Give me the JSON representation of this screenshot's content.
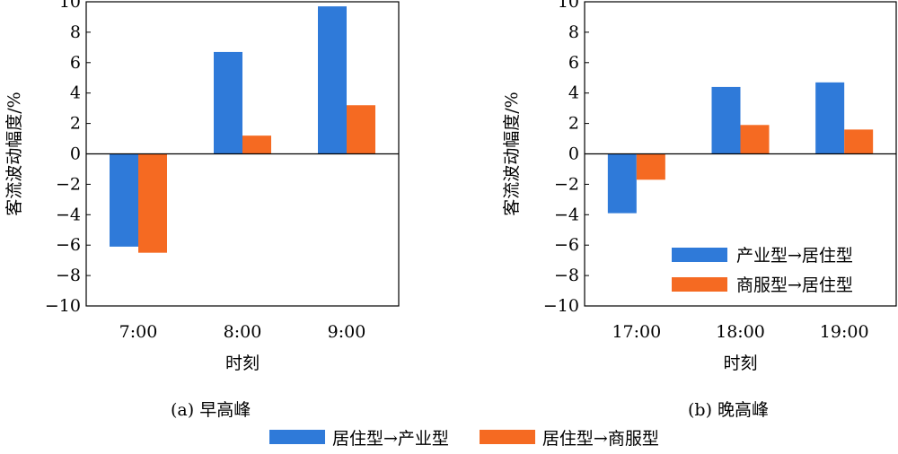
{
  "chart_data": [
    {
      "type": "bar",
      "caption": "(a) 早高峰",
      "categories": [
        "7:00",
        "8:00",
        "9:00"
      ],
      "series": [
        {
          "name": "居住型→产业型",
          "color": "#2f7ad9",
          "values": [
            -6.1,
            6.7,
            9.7
          ]
        },
        {
          "name": "居住型→商服型",
          "color": "#f56a22",
          "values": [
            -6.5,
            1.2,
            3.2
          ]
        }
      ],
      "xlabel": "时刻",
      "ylabel": "客流波动幅度/%",
      "ylim": [
        -10,
        10
      ],
      "yticks": [
        "10",
        "8",
        "6",
        "4",
        "2",
        "0",
        "−2",
        "−4",
        "−6",
        "−8",
        "−10"
      ],
      "grid": false
    },
    {
      "type": "bar",
      "caption": "(b) 晚高峰",
      "categories": [
        "17:00",
        "18:00",
        "19:00"
      ],
      "series": [
        {
          "name": "产业型→居住型",
          "color": "#2f7ad9",
          "values": [
            -3.9,
            4.4,
            4.7
          ]
        },
        {
          "name": "商服型→居住型",
          "color": "#f56a22",
          "values": [
            -1.7,
            1.9,
            1.6
          ]
        }
      ],
      "xlabel": "时刻",
      "ylabel": "客流波动幅度/%",
      "ylim": [
        -10,
        10
      ],
      "yticks": [
        "10",
        "8",
        "6",
        "4",
        "2",
        "0",
        "−2",
        "−4",
        "−6",
        "−8",
        "−10"
      ],
      "grid": false,
      "legend": "inside-bottom-right"
    }
  ],
  "legend_bottom": [
    {
      "label": "居住型→产业型",
      "color": "#2f7ad9"
    },
    {
      "label": "居住型→商服型",
      "color": "#f56a22"
    }
  ]
}
